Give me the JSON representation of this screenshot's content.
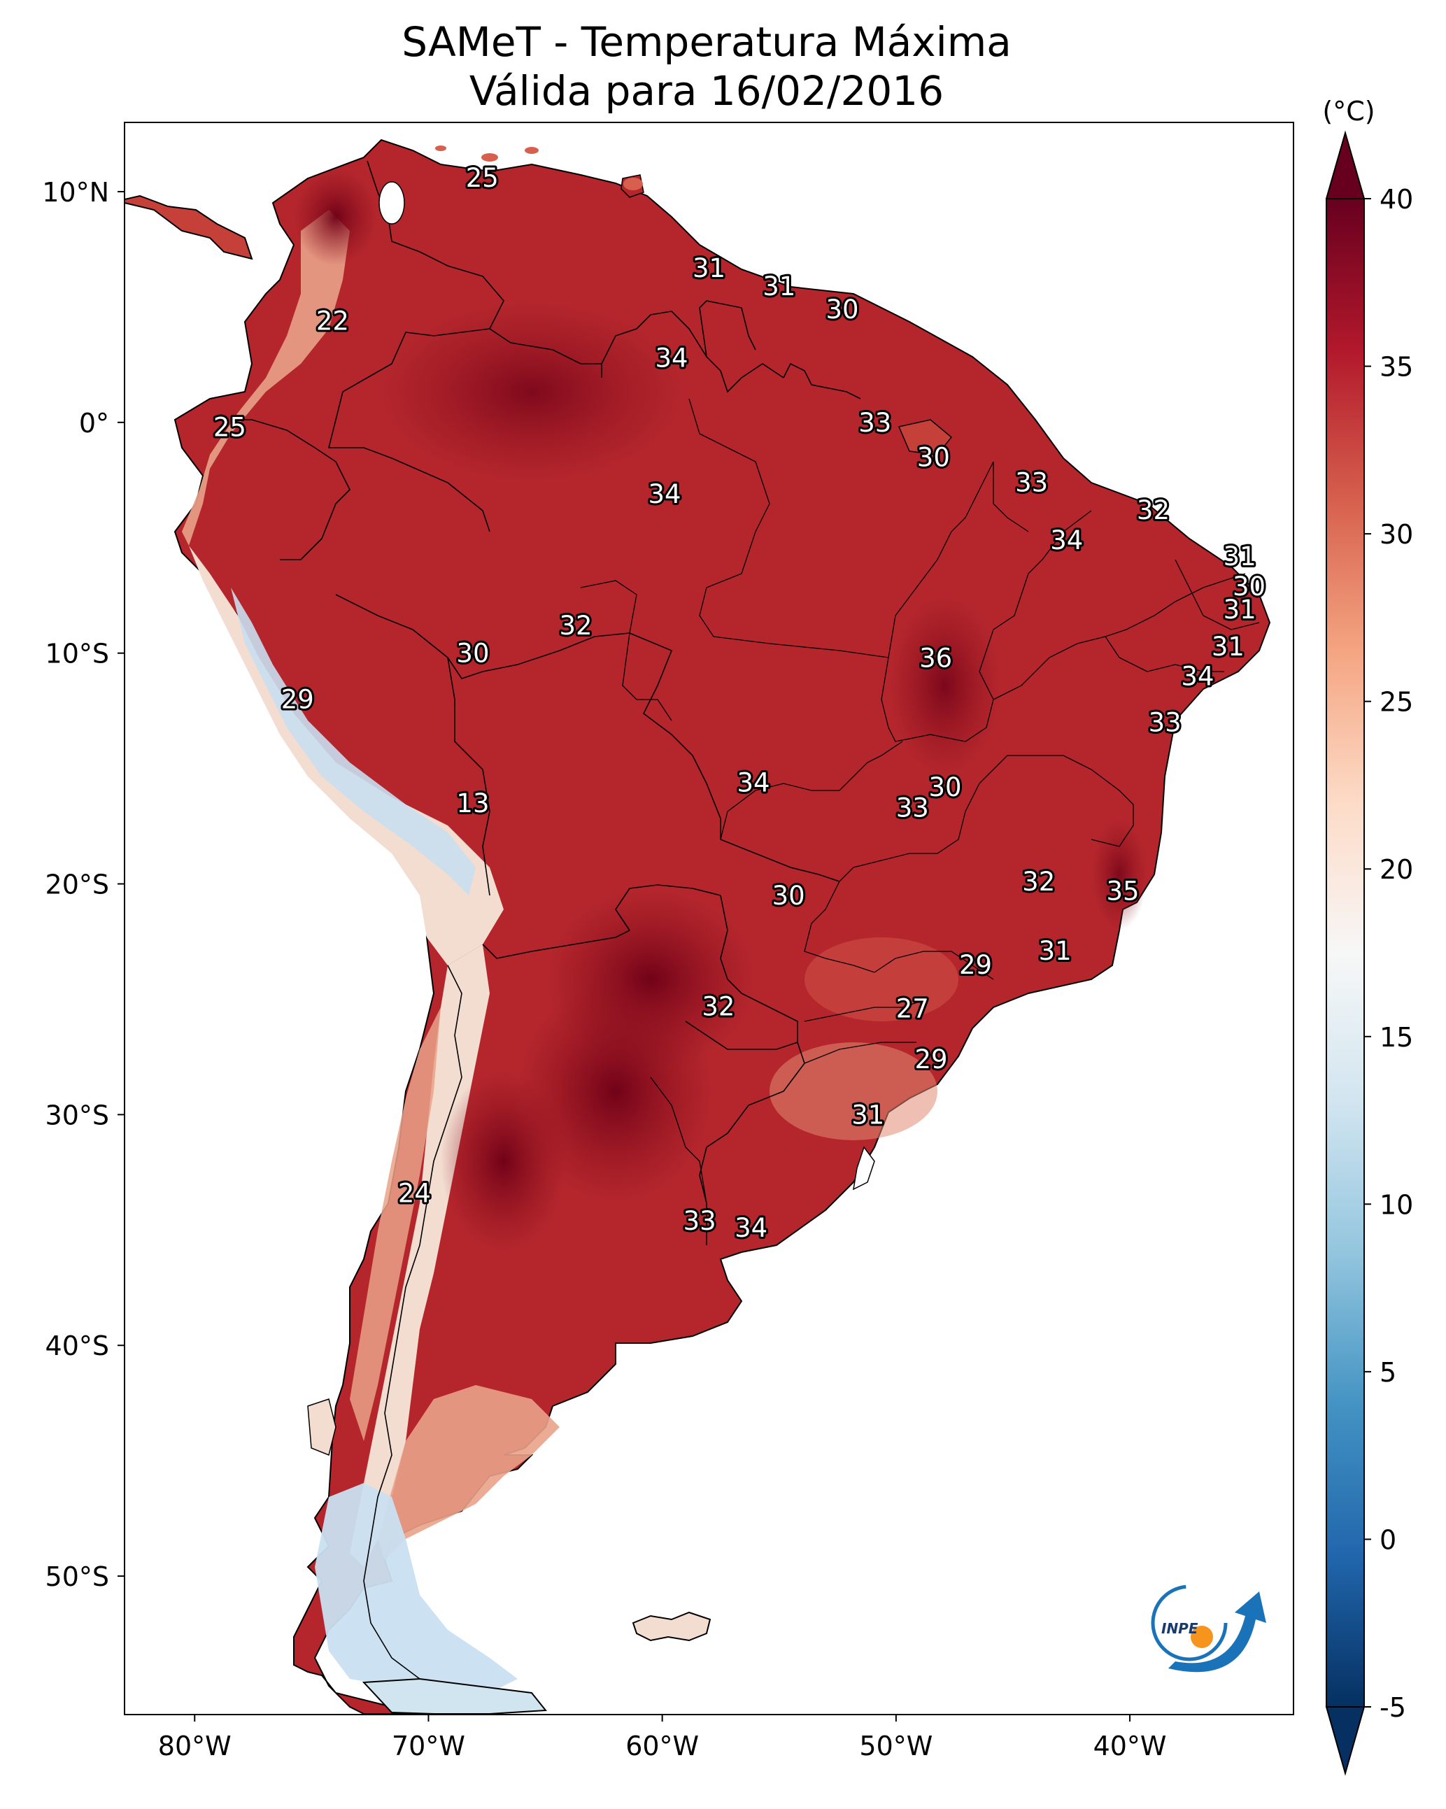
{
  "title": {
    "line1": "SAMeT - Temperatura Máxima",
    "line2": "Válida para 16/02/2016"
  },
  "map": {
    "lon_range": [
      -83,
      -33
    ],
    "lat_range": [
      -56,
      13
    ],
    "lon_ticks": [
      {
        "value": -80,
        "label": "80°W"
      },
      {
        "value": -70,
        "label": "70°W"
      },
      {
        "value": -60,
        "label": "60°W"
      },
      {
        "value": -50,
        "label": "50°W"
      },
      {
        "value": -40,
        "label": "40°W"
      }
    ],
    "lat_ticks": [
      {
        "value": 10,
        "label": "10°N"
      },
      {
        "value": 0,
        "label": "0°"
      },
      {
        "value": -10,
        "label": "10°S"
      },
      {
        "value": -20,
        "label": "20°S"
      },
      {
        "value": -30,
        "label": "30°S"
      },
      {
        "value": -40,
        "label": "40°S"
      },
      {
        "value": -50,
        "label": "50°S"
      }
    ]
  },
  "colorbar": {
    "unit": "(°C)",
    "min": -5,
    "max": 40,
    "ticks": [
      -5,
      0,
      5,
      10,
      15,
      20,
      25,
      30,
      35,
      40
    ],
    "colors": [
      "#053061",
      "#2166ac",
      "#4393c3",
      "#92c5de",
      "#d1e5f0",
      "#f7f7f7",
      "#fddbc7",
      "#f4a582",
      "#d6604d",
      "#b2182b",
      "#67001f"
    ]
  },
  "land_colors": {
    "hot": "#b4262c",
    "warm": "#c6403a",
    "very_hot": "#8a0f1e",
    "mild": "#e9a28a",
    "cool": "#f3dcd0",
    "cold": "#c9dff0"
  },
  "point_labels": [
    {
      "text": "25",
      "lon": -67.7,
      "lat": 10.6
    },
    {
      "text": "31",
      "lon": -58.0,
      "lat": 6.7
    },
    {
      "text": "31",
      "lon": -55.0,
      "lat": 5.9
    },
    {
      "text": "30",
      "lon": -52.3,
      "lat": 4.9
    },
    {
      "text": "22",
      "lon": -74.1,
      "lat": 4.4
    },
    {
      "text": "34",
      "lon": -59.6,
      "lat": 2.8
    },
    {
      "text": "25",
      "lon": -78.5,
      "lat": -0.2
    },
    {
      "text": "33",
      "lon": -50.9,
      "lat": 0.0
    },
    {
      "text": "30",
      "lon": -48.4,
      "lat": -1.5
    },
    {
      "text": "33",
      "lon": -44.2,
      "lat": -2.6
    },
    {
      "text": "34",
      "lon": -59.9,
      "lat": -3.1
    },
    {
      "text": "32",
      "lon": -39.0,
      "lat": -3.8
    },
    {
      "text": "34",
      "lon": -42.7,
      "lat": -5.1
    },
    {
      "text": "31",
      "lon": -35.3,
      "lat": -5.8
    },
    {
      "text": "30",
      "lon": -34.9,
      "lat": -7.1
    },
    {
      "text": "31",
      "lon": -35.3,
      "lat": -8.1
    },
    {
      "text": "32",
      "lon": -63.7,
      "lat": -8.8
    },
    {
      "text": "31",
      "lon": -35.8,
      "lat": -9.7
    },
    {
      "text": "30",
      "lon": -68.1,
      "lat": -10.0
    },
    {
      "text": "36",
      "lon": -48.3,
      "lat": -10.2
    },
    {
      "text": "34",
      "lon": -37.1,
      "lat": -11.0
    },
    {
      "text": "29",
      "lon": -75.6,
      "lat": -12.0
    },
    {
      "text": "33",
      "lon": -38.5,
      "lat": -13.0
    },
    {
      "text": "34",
      "lon": -56.1,
      "lat": -15.6
    },
    {
      "text": "30",
      "lon": -47.9,
      "lat": -15.8
    },
    {
      "text": "33",
      "lon": -49.3,
      "lat": -16.7
    },
    {
      "text": "13",
      "lon": -68.1,
      "lat": -16.5
    },
    {
      "text": "32",
      "lon": -43.9,
      "lat": -19.9
    },
    {
      "text": "35",
      "lon": -40.3,
      "lat": -20.3
    },
    {
      "text": "30",
      "lon": -54.6,
      "lat": -20.5
    },
    {
      "text": "31",
      "lon": -43.2,
      "lat": -22.9
    },
    {
      "text": "29",
      "lon": -46.6,
      "lat": -23.5
    },
    {
      "text": "32",
      "lon": -57.6,
      "lat": -25.3
    },
    {
      "text": "27",
      "lon": -49.3,
      "lat": -25.4
    },
    {
      "text": "29",
      "lon": -48.5,
      "lat": -27.6
    },
    {
      "text": "31",
      "lon": -51.2,
      "lat": -30.0
    },
    {
      "text": "24",
      "lon": -70.6,
      "lat": -33.4
    },
    {
      "text": "33",
      "lon": -58.4,
      "lat": -34.6
    },
    {
      "text": "34",
      "lon": -56.2,
      "lat": -34.9
    }
  ],
  "logo": {
    "text": "INPE"
  }
}
